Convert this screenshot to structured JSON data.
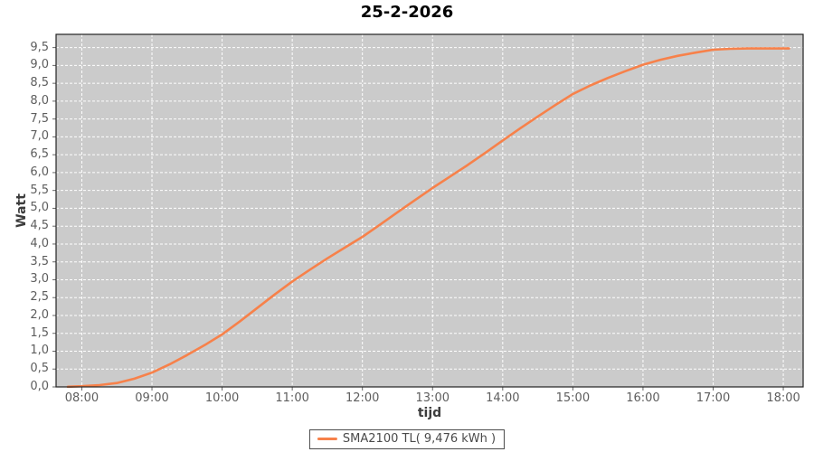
{
  "chart_data": {
    "type": "line",
    "title": "25-2-2026",
    "xlabel": "tijd",
    "ylabel": "Watt",
    "plot_bg": "#cbcbcb",
    "plot_border_color": "#222222",
    "tick_color": "#666666",
    "grid": {
      "color": "#ffffff",
      "dash": "3 2"
    },
    "x_domain_hours": [
      7.633,
      18.283
    ],
    "y_domain": [
      0,
      9.87
    ],
    "x_ticks": [
      {
        "v": 8,
        "label": "08:00"
      },
      {
        "v": 9,
        "label": "09:00"
      },
      {
        "v": 10,
        "label": "10:00"
      },
      {
        "v": 11,
        "label": "11:00"
      },
      {
        "v": 12,
        "label": "12:00"
      },
      {
        "v": 13,
        "label": "13:00"
      },
      {
        "v": 14,
        "label": "14:00"
      },
      {
        "v": 15,
        "label": "15:00"
      },
      {
        "v": 16,
        "label": "16:00"
      },
      {
        "v": 17,
        "label": "17:00"
      },
      {
        "v": 18,
        "label": "18:00"
      }
    ],
    "y_ticks": [
      {
        "v": 0.0,
        "label": "0,0"
      },
      {
        "v": 0.5,
        "label": "0,5"
      },
      {
        "v": 1.0,
        "label": "1,0"
      },
      {
        "v": 1.5,
        "label": "1,5"
      },
      {
        "v": 2.0,
        "label": "2,0"
      },
      {
        "v": 2.5,
        "label": "2,5"
      },
      {
        "v": 3.0,
        "label": "3,0"
      },
      {
        "v": 3.5,
        "label": "3,5"
      },
      {
        "v": 4.0,
        "label": "4,0"
      },
      {
        "v": 4.5,
        "label": "4,5"
      },
      {
        "v": 5.0,
        "label": "5,0"
      },
      {
        "v": 5.5,
        "label": "5,5"
      },
      {
        "v": 6.0,
        "label": "6,0"
      },
      {
        "v": 6.5,
        "label": "6,5"
      },
      {
        "v": 7.0,
        "label": "7,0"
      },
      {
        "v": 7.5,
        "label": "7,5"
      },
      {
        "v": 8.0,
        "label": "8,0"
      },
      {
        "v": 8.5,
        "label": "8,5"
      },
      {
        "v": 9.0,
        "label": "9,0"
      },
      {
        "v": 9.5,
        "label": "9,5"
      }
    ],
    "legend": {
      "position": "bottom-center",
      "label": "SMA2100 TL( 9,476 kWh )"
    },
    "series": [
      {
        "name": "SMA2100 TL( 9,476 kWh )",
        "color": "#f7814a",
        "total_kwh": "9,476",
        "points": [
          [
            7.8,
            0.005
          ],
          [
            8.0,
            0.02
          ],
          [
            8.25,
            0.05
          ],
          [
            8.5,
            0.11
          ],
          [
            8.75,
            0.23
          ],
          [
            9.0,
            0.4
          ],
          [
            9.25,
            0.63
          ],
          [
            9.5,
            0.89
          ],
          [
            9.75,
            1.17
          ],
          [
            10.0,
            1.47
          ],
          [
            10.25,
            1.83
          ],
          [
            10.5,
            2.21
          ],
          [
            10.75,
            2.59
          ],
          [
            11.0,
            2.95
          ],
          [
            11.25,
            3.28
          ],
          [
            11.5,
            3.6
          ],
          [
            11.75,
            3.9
          ],
          [
            12.0,
            4.2
          ],
          [
            12.25,
            4.54
          ],
          [
            12.5,
            4.89
          ],
          [
            12.75,
            5.23
          ],
          [
            13.0,
            5.57
          ],
          [
            13.25,
            5.89
          ],
          [
            13.5,
            6.21
          ],
          [
            13.75,
            6.55
          ],
          [
            14.0,
            6.9
          ],
          [
            14.25,
            7.24
          ],
          [
            14.5,
            7.57
          ],
          [
            14.75,
            7.89
          ],
          [
            15.0,
            8.2
          ],
          [
            15.25,
            8.44
          ],
          [
            15.5,
            8.65
          ],
          [
            15.75,
            8.84
          ],
          [
            16.0,
            9.02
          ],
          [
            16.25,
            9.16
          ],
          [
            16.5,
            9.27
          ],
          [
            16.75,
            9.36
          ],
          [
            17.0,
            9.44
          ],
          [
            17.25,
            9.465
          ],
          [
            17.5,
            9.474
          ],
          [
            17.75,
            9.476
          ],
          [
            18.0,
            9.476
          ],
          [
            18.08,
            9.476
          ]
        ]
      }
    ]
  }
}
